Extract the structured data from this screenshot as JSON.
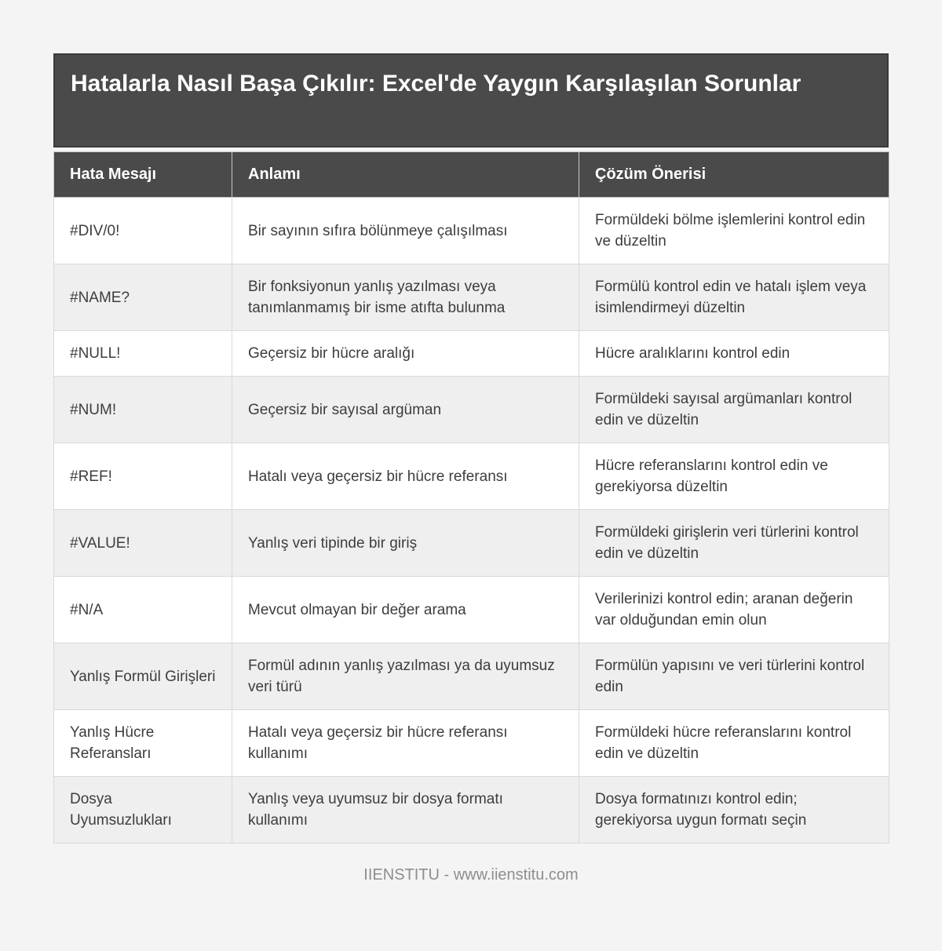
{
  "page": {
    "title": "Hatalarla Nasıl Başa Çıkılır: Excel'de Yaygın Karşılaşılan Sorunlar",
    "footer": "IIENSTITU - www.iienstitu.com"
  },
  "colors": {
    "header_bg": "#4a4a4a",
    "header_text": "#ffffff",
    "row_alt_bg": "#efefef",
    "row_bg": "#ffffff",
    "body_text": "#3d3d3d",
    "page_bg": "#f4f4f4",
    "footer_text": "#8e8e8e",
    "border": "#d9d9d9"
  },
  "table": {
    "columns": [
      "Hata Mesajı",
      "Anlamı",
      "Çözüm Önerisi"
    ],
    "rows": [
      {
        "error": "#DIV/0!",
        "meaning": "Bir sayının sıfıra bölünmeye çalışılması",
        "solution": "Formüldeki bölme işlemlerini kontrol edin ve düzeltin"
      },
      {
        "error": "#NAME?",
        "meaning": "Bir fonksiyonun yanlış yazılması veya tanımlanmamış bir isme atıfta bulunma",
        "solution": "Formülü kontrol edin ve hatalı işlem veya isimlendirmeyi düzeltin"
      },
      {
        "error": "#NULL!",
        "meaning": "Geçersiz bir hücre aralığı",
        "solution": "Hücre aralıklarını kontrol edin"
      },
      {
        "error": "#NUM!",
        "meaning": "Geçersiz bir sayısal argüman",
        "solution": "Formüldeki sayısal argümanları kontrol edin ve düzeltin"
      },
      {
        "error": "#REF!",
        "meaning": "Hatalı veya geçersiz bir hücre referansı",
        "solution": "Hücre referanslarını kontrol edin ve gerekiyorsa düzeltin"
      },
      {
        "error": "#VALUE!",
        "meaning": "Yanlış veri tipinde bir giriş",
        "solution": "Formüldeki girişlerin veri türlerini kontrol edin ve düzeltin"
      },
      {
        "error": "#N/A",
        "meaning": "Mevcut olmayan bir değer arama",
        "solution": "Verilerinizi kontrol edin; aranan değerin var olduğundan emin olun"
      },
      {
        "error": "Yanlış Formül Girişleri",
        "meaning": "Formül adının yanlış yazılması ya da uyumsuz veri türü",
        "solution": "Formülün yapısını ve veri türlerini kontrol edin"
      },
      {
        "error": "Yanlış Hücre Referansları",
        "meaning": "Hatalı veya geçersiz bir hücre referansı kullanımı",
        "solution": "Formüldeki hücre referanslarını kontrol edin ve düzeltin"
      },
      {
        "error": "Dosya Uyumsuzlukları",
        "meaning": "Yanlış veya uyumsuz bir dosya formatı kullanımı",
        "solution": "Dosya formatınızı kontrol edin; gerekiyorsa uygun formatı seçin"
      }
    ]
  }
}
